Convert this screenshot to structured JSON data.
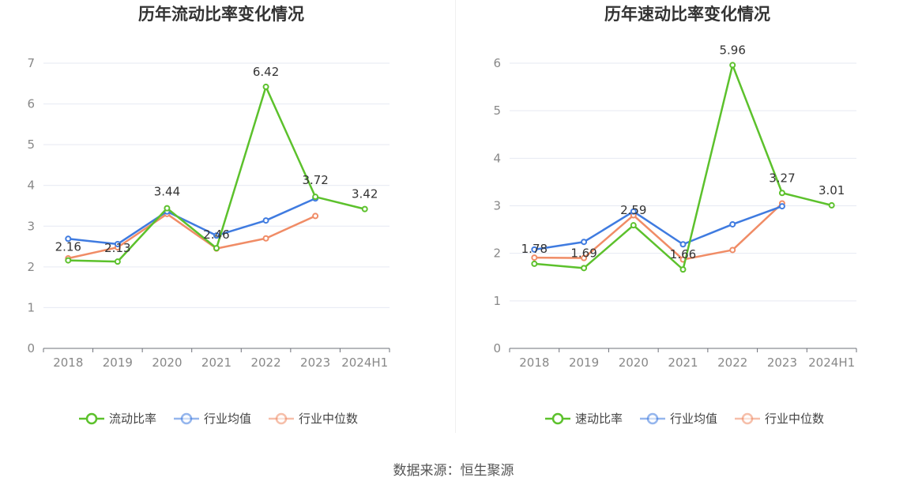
{
  "chart_data": [
    {
      "type": "line",
      "title": "历年流动比率变化情况",
      "categories": [
        "2018",
        "2019",
        "2020",
        "2021",
        "2022",
        "2023",
        "2024H1"
      ],
      "ylim": [
        0,
        7
      ],
      "yticks": [
        0,
        1,
        2,
        3,
        4,
        5,
        6,
        7
      ],
      "grid": true,
      "legend_position": "bottom",
      "series": [
        {
          "name": "流动比率",
          "color": "#5cc12c",
          "values": [
            2.16,
            2.13,
            3.44,
            2.46,
            6.42,
            3.72,
            3.42
          ],
          "labels": [
            "2.16",
            "2.13",
            "3.44",
            "2.46",
            "6.42",
            "3.72",
            "3.42"
          ]
        },
        {
          "name": "行业均值",
          "color": "#3f7be0",
          "values": [
            2.69,
            2.56,
            3.36,
            2.77,
            3.14,
            3.68,
            null
          ]
        },
        {
          "name": "行业中位数",
          "color": "#f08c66",
          "values": [
            2.21,
            2.48,
            3.3,
            2.45,
            2.7,
            3.25,
            null
          ]
        }
      ]
    },
    {
      "type": "line",
      "title": "历年速动比率变化情况",
      "categories": [
        "2018",
        "2019",
        "2020",
        "2021",
        "2022",
        "2023",
        "2024H1"
      ],
      "ylim": [
        0,
        6
      ],
      "yticks": [
        0,
        1,
        2,
        3,
        4,
        5,
        6
      ],
      "grid": true,
      "legend_position": "bottom",
      "series": [
        {
          "name": "速动比率",
          "color": "#5cc12c",
          "values": [
            1.78,
            1.69,
            2.59,
            1.66,
            5.96,
            3.27,
            3.01
          ],
          "labels": [
            "1.78",
            "1.69",
            "2.59",
            "1.66",
            "5.96",
            "3.27",
            "3.01"
          ]
        },
        {
          "name": "行业均值",
          "color": "#3f7be0",
          "values": [
            2.08,
            2.24,
            2.88,
            2.19,
            2.61,
            2.99,
            null
          ]
        },
        {
          "name": "行业中位数",
          "color": "#f08c66",
          "values": [
            1.91,
            1.9,
            2.8,
            1.87,
            2.07,
            3.05,
            null
          ]
        }
      ]
    }
  ],
  "footer": {
    "source": "数据来源：恒生聚源"
  }
}
